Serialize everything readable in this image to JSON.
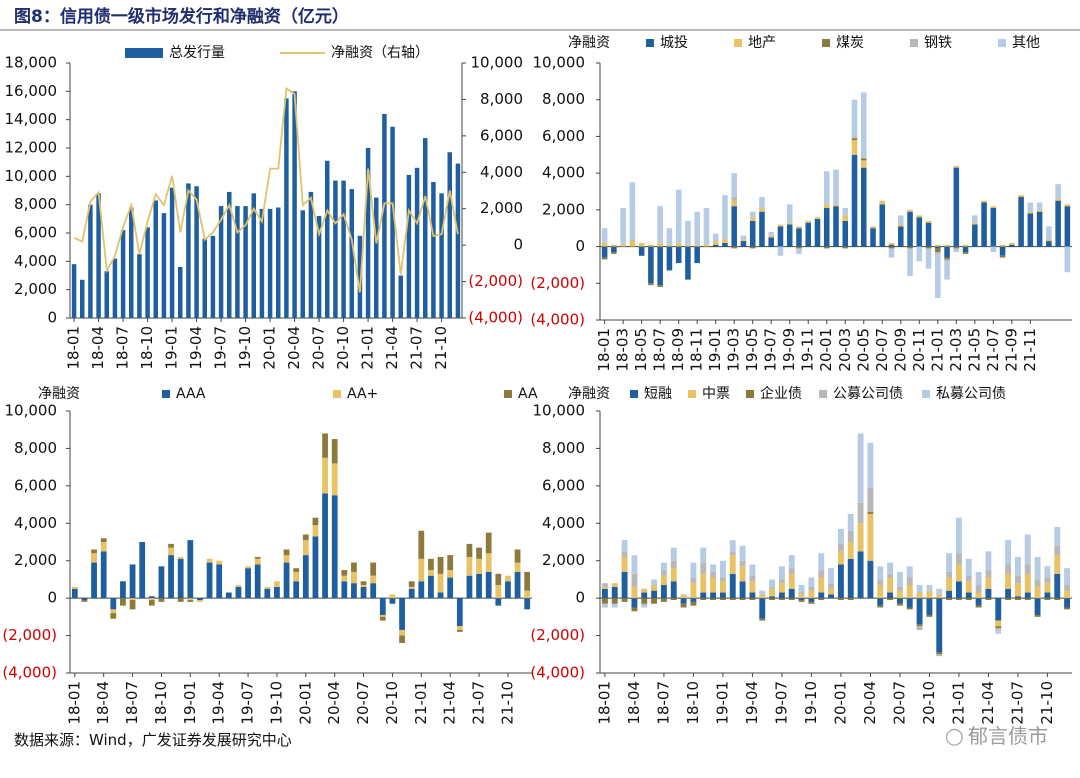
{
  "figure": {
    "title": "图8：信用债一级市场发行和净融资（亿元）",
    "source": "数据来源：Wind，广发证券发展研究中心",
    "watermark": "郁言债市",
    "watermark_icon": "wechat-icon"
  },
  "colors": {
    "navy": "#1f5f9f",
    "gold": "#e8c264",
    "olive": "#8c7a3c",
    "gray": "#b8b8b8",
    "light": "#b6cbe4",
    "line": "#e0c46c",
    "neg": "#d10000"
  },
  "chart_data": [
    {
      "type": "bar",
      "title": "",
      "x_labels": [
        "18-01",
        "18-04",
        "18-07",
        "18-10",
        "19-01",
        "19-04",
        "19-07",
        "19-10",
        "20-01",
        "20-04",
        "20-07",
        "20-10",
        "21-01",
        "21-04",
        "21-07",
        "21-10"
      ],
      "x_label_start": 0,
      "x_label_step": 3,
      "y_left": {
        "range": [
          0,
          18000
        ],
        "ticks": [
          "0",
          "2,000",
          "4,000",
          "6,000",
          "8,000",
          "10,000",
          "12,000",
          "14,000",
          "16,000",
          "18,000"
        ]
      },
      "y_right": {
        "range": [
          -4000,
          10000
        ],
        "ticks": [
          "(4,000)",
          "(2,000)",
          "0",
          "2,000",
          "4,000",
          "6,000",
          "8,000",
          "10,000"
        ]
      },
      "series": [
        {
          "name": "总发行量",
          "kind": "bar",
          "axis": "left",
          "color": "#1f5f9f",
          "values": [
            3800,
            2700,
            8000,
            8800,
            3300,
            4200,
            6200,
            7800,
            4500,
            6400,
            8300,
            7400,
            9200,
            3600,
            9500,
            9300,
            5600,
            5800,
            7900,
            8900,
            7900,
            7900,
            8800,
            7700,
            7700,
            7800,
            15500,
            16000,
            7600,
            8900,
            7200,
            11100,
            9700,
            9700,
            9100,
            5800,
            12000,
            8500,
            14400,
            13500,
            3000,
            10100,
            10600,
            12700,
            9600,
            8800,
            11700,
            10900
          ]
        },
        {
          "name": "净融资（右轴）",
          "kind": "line",
          "axis": "right",
          "color": "#e0c46c",
          "values": [
            400,
            200,
            2400,
            2900,
            -1400,
            -600,
            1000,
            2200,
            -500,
            1300,
            2800,
            2200,
            3800,
            700,
            3000,
            2500,
            300,
            700,
            1400,
            2200,
            700,
            1100,
            2000,
            1300,
            4200,
            4200,
            8600,
            8300,
            2200,
            2600,
            600,
            1900,
            1200,
            1700,
            300,
            -2600,
            4200,
            100,
            2300,
            2300,
            -1600,
            1900,
            1200,
            2700,
            500,
            600,
            3000,
            600
          ]
        }
      ]
    },
    {
      "type": "stacked_bar",
      "y_title": "净融资",
      "x_labels": [
        "18-01",
        "18-03",
        "18-05",
        "18-07",
        "18-09",
        "18-11",
        "19-01",
        "19-03",
        "19-05",
        "19-07",
        "19-09",
        "19-11",
        "20-01",
        "20-03",
        "20-05",
        "20-07",
        "20-09",
        "20-11",
        "21-01",
        "21-03",
        "21-05",
        "21-07",
        "21-09",
        "21-11"
      ],
      "x_label_start": 0,
      "x_label_step": 2,
      "y": {
        "range": [
          -4000,
          10000
        ],
        "ticks": [
          "(4,000)",
          "(2,000)",
          "0",
          "2,000",
          "4,000",
          "6,000",
          "8,000",
          "10,000"
        ]
      },
      "series": [
        {
          "name": "城投",
          "color": "#1f5f9f",
          "values": [
            -600,
            -300,
            0,
            0,
            -500,
            -2000,
            -2100,
            -1300,
            -900,
            -1800,
            -900,
            0,
            100,
            200,
            2200,
            300,
            1400,
            1900,
            500,
            1100,
            1200,
            1000,
            1300,
            1500,
            2100,
            2200,
            1400,
            5000,
            4300,
            1000,
            2300,
            100,
            1100,
            1900,
            1600,
            1300,
            -100,
            -600,
            4300,
            -300,
            1200,
            2400,
            2100,
            -500,
            100,
            2700,
            1800,
            1900,
            300,
            2500,
            2200
          ]
        },
        {
          "name": "地产",
          "color": "#e8c264",
          "values": [
            200,
            100,
            100,
            300,
            200,
            100,
            200,
            100,
            200,
            100,
            100,
            100,
            200,
            200,
            300,
            100,
            200,
            200,
            100,
            100,
            100,
            100,
            100,
            100,
            200,
            100,
            300,
            800,
            400,
            100,
            200,
            100,
            100,
            100,
            100,
            100,
            100,
            100,
            100,
            100,
            100,
            100,
            100,
            100,
            100,
            100,
            100,
            100,
            100,
            100,
            100
          ]
        },
        {
          "name": "煤炭",
          "color": "#8c7a3c",
          "values": [
            -100,
            -100,
            0,
            0,
            0,
            -100,
            -100,
            0,
            0,
            0,
            0,
            0,
            0,
            0,
            -100,
            0,
            -100,
            0,
            0,
            0,
            0,
            -100,
            0,
            0,
            -100,
            0,
            -100,
            100,
            100,
            0,
            0,
            -100,
            0,
            -100,
            0,
            -100,
            -200,
            -100,
            -100,
            -100,
            0,
            0,
            0,
            -100,
            0,
            0,
            0,
            0,
            0,
            0,
            0
          ]
        },
        {
          "name": "钢铁",
          "color": "#b8b8b8",
          "values": [
            0,
            0,
            0,
            100,
            0,
            0,
            0,
            0,
            0,
            0,
            0,
            0,
            0,
            0,
            200,
            0,
            0,
            0,
            0,
            0,
            0,
            0,
            0,
            0,
            0,
            0,
            0,
            100,
            0,
            0,
            0,
            0,
            0,
            0,
            0,
            0,
            -100,
            -100,
            0,
            0,
            0,
            0,
            0,
            0,
            0,
            0,
            0,
            0,
            0,
            0,
            0
          ]
        },
        {
          "name": "其他",
          "color": "#b6cbe4",
          "values": [
            800,
            0,
            2000,
            3100,
            0,
            0,
            2000,
            900,
            2900,
            1300,
            1800,
            2000,
            400,
            2400,
            1300,
            200,
            300,
            600,
            200,
            -500,
            1000,
            -300,
            0,
            0,
            1800,
            1900,
            400,
            2000,
            3600,
            0,
            0,
            -500,
            500,
            -1500,
            -800,
            -1100,
            -2400,
            -1000,
            -200,
            0,
            400,
            0,
            -300,
            0,
            0,
            0,
            500,
            400,
            700,
            800,
            -1400
          ]
        }
      ]
    },
    {
      "type": "stacked_bar",
      "y_title": "净融资",
      "x_labels": [
        "18-01",
        "18-04",
        "18-07",
        "18-10",
        "19-01",
        "19-04",
        "19-07",
        "19-10",
        "20-01",
        "20-04",
        "20-07",
        "20-10",
        "21-01",
        "21-04",
        "21-07",
        "21-10"
      ],
      "x_label_start": 0,
      "x_label_step": 3,
      "y": {
        "range": [
          -4000,
          10000
        ],
        "ticks": [
          "(4,000)",
          "(2,000)",
          "0",
          "2,000",
          "4,000",
          "6,000",
          "8,000",
          "10,000"
        ]
      },
      "series": [
        {
          "name": "AAA",
          "color": "#1f5f9f",
          "values": [
            500,
            -100,
            1900,
            2500,
            -600,
            900,
            1800,
            3000,
            100,
            1700,
            2300,
            2100,
            3100,
            -100,
            1900,
            1800,
            300,
            600,
            1600,
            1800,
            500,
            600,
            1900,
            900,
            2300,
            3300,
            5600,
            5500,
            900,
            800,
            600,
            800,
            -900,
            -300,
            -1700,
            500,
            900,
            1200,
            300,
            1100,
            -1500,
            1200,
            1300,
            1400,
            -400,
            900,
            1400,
            -600
          ]
        },
        {
          "name": "AA+",
          "color": "#e8c264",
          "values": [
            100,
            0,
            500,
            500,
            -200,
            0,
            -100,
            0,
            -100,
            0,
            400,
            100,
            -100,
            -100,
            200,
            200,
            0,
            100,
            100,
            300,
            100,
            300,
            400,
            500,
            800,
            600,
            1900,
            1700,
            300,
            600,
            100,
            400,
            -100,
            200,
            -300,
            100,
            1200,
            300,
            1000,
            400,
            -200,
            1000,
            800,
            1000,
            700,
            300,
            500,
            400
          ]
        },
        {
          "name": "AA",
          "color": "#8c7a3c",
          "values": [
            0,
            -100,
            200,
            200,
            -300,
            -400,
            -500,
            0,
            -300,
            -200,
            200,
            -200,
            -100,
            0,
            0,
            0,
            0,
            0,
            0,
            100,
            0,
            0,
            300,
            200,
            300,
            400,
            1300,
            1300,
            300,
            500,
            200,
            700,
            -200,
            0,
            -400,
            300,
            1500,
            600,
            900,
            800,
            -100,
            700,
            600,
            1100,
            600,
            0,
            700,
            1000
          ]
        }
      ]
    },
    {
      "type": "stacked_bar",
      "y_title": "净融资",
      "x_labels": [
        "18-01",
        "18-04",
        "18-07",
        "18-10",
        "19-01",
        "19-04",
        "19-07",
        "19-10",
        "20-01",
        "20-04",
        "20-07",
        "20-10",
        "21-01",
        "21-04",
        "21-07",
        "21-10"
      ],
      "x_label_start": 0,
      "x_label_step": 3,
      "y": {
        "range": [
          -4000,
          10000
        ],
        "ticks": [
          "(4,000)",
          "(2,000)",
          "0",
          "2,000",
          "4,000",
          "6,000",
          "8,000",
          "10,000"
        ]
      },
      "series": [
        {
          "name": "短融",
          "color": "#1f5f9f",
          "values": [
            500,
            600,
            1400,
            -500,
            300,
            400,
            700,
            900,
            -300,
            -200,
            300,
            300,
            300,
            1300,
            900,
            300,
            -1100,
            100,
            300,
            500,
            -100,
            -200,
            300,
            200,
            1800,
            2100,
            2500,
            2000,
            -400,
            300,
            -300,
            -500,
            -1400,
            -900,
            -2900,
            400,
            900,
            300,
            -400,
            500,
            -1200,
            500,
            100,
            300,
            -900,
            300,
            1300,
            -500
          ]
        },
        {
          "name": "中票",
          "color": "#e8c264",
          "values": [
            100,
            200,
            800,
            600,
            200,
            300,
            500,
            700,
            200,
            800,
            1000,
            800,
            600,
            1000,
            800,
            600,
            200,
            400,
            500,
            800,
            200,
            400,
            800,
            300,
            700,
            900,
            1500,
            2500,
            700,
            800,
            400,
            700,
            300,
            400,
            200,
            700,
            900,
            600,
            300,
            600,
            -300,
            800,
            700,
            1000,
            600,
            500,
            1000,
            400
          ]
        },
        {
          "name": "企业债",
          "color": "#8c7a3c",
          "values": [
            -300,
            -300,
            -200,
            -200,
            -300,
            -300,
            -200,
            -100,
            -200,
            -200,
            -100,
            -100,
            -100,
            -100,
            -100,
            -100,
            -100,
            -100,
            -100,
            -100,
            -100,
            -100,
            -100,
            0,
            -100,
            -100,
            0,
            100,
            -100,
            -100,
            -100,
            -100,
            -100,
            -100,
            -100,
            -100,
            -100,
            -100,
            -100,
            -100,
            -100,
            -100,
            -100,
            -100,
            -100,
            -100,
            -100,
            -100
          ]
        },
        {
          "name": "公募公司债",
          "color": "#b8b8b8",
          "values": [
            200,
            0,
            300,
            700,
            -100,
            0,
            300,
            400,
            0,
            300,
            600,
            300,
            200,
            200,
            300,
            300,
            0,
            100,
            200,
            300,
            100,
            200,
            400,
            300,
            400,
            600,
            1100,
            1300,
            300,
            200,
            200,
            400,
            -200,
            0,
            -100,
            300,
            600,
            300,
            400,
            400,
            -100,
            500,
            400,
            500,
            400,
            300,
            500,
            300
          ]
        },
        {
          "name": "私募公司债",
          "color": "#b6cbe4",
          "values": [
            -200,
            -200,
            600,
            1000,
            -100,
            300,
            400,
            700,
            0,
            800,
            800,
            400,
            900,
            600,
            800,
            600,
            200,
            400,
            700,
            700,
            400,
            500,
            900,
            800,
            800,
            900,
            3700,
            2400,
            700,
            600,
            800,
            600,
            400,
            300,
            300,
            1000,
            1900,
            900,
            700,
            1000,
            -200,
            1300,
            1000,
            1600,
            1200,
            600,
            1000,
            900
          ]
        }
      ]
    }
  ]
}
